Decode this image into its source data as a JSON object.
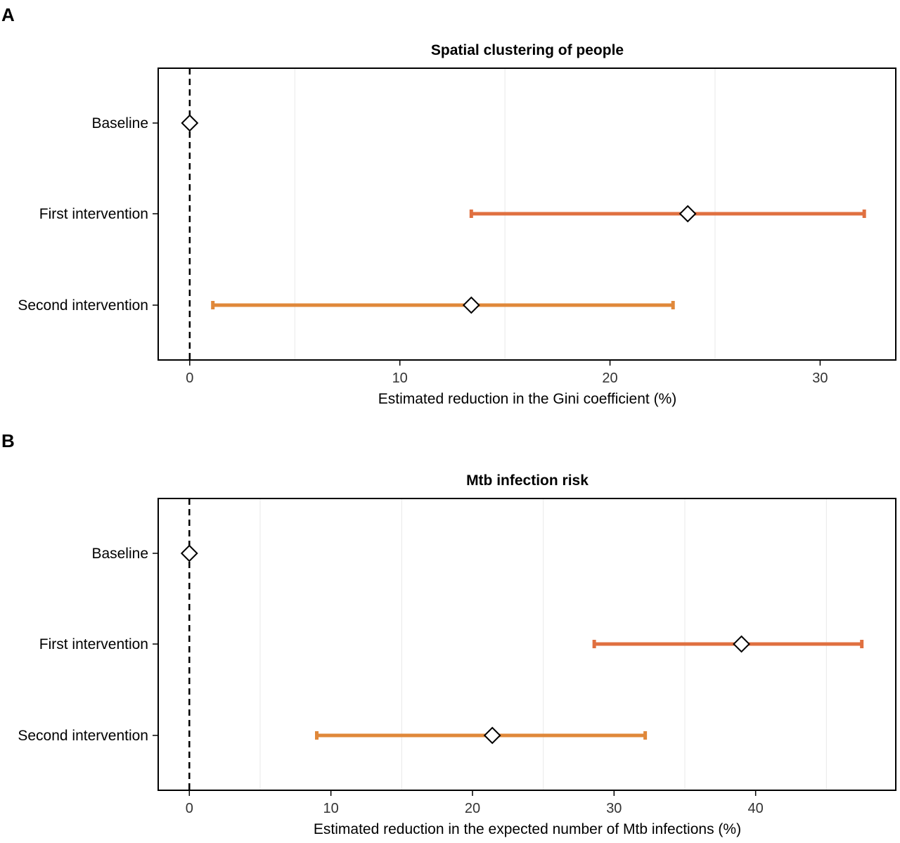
{
  "chart_data": [
    {
      "type": "errorbar",
      "panel": "A",
      "title": "Spatial clustering of people",
      "xlabel": "Estimated reduction in the Gini coefficient (%)",
      "ylabel": "",
      "xlim": [
        -1.5,
        33.6
      ],
      "xticks": [
        0,
        10,
        20,
        30
      ],
      "minor_gridlines": [
        5,
        15,
        25
      ],
      "reference_line": 0,
      "categories": [
        "Baseline",
        "First intervention",
        "Second intervention"
      ],
      "points": [
        {
          "category": "Baseline",
          "estimate": 0,
          "lower": null,
          "upper": null,
          "color": "#000000"
        },
        {
          "category": "First intervention",
          "estimate": 23.7,
          "lower": 13.4,
          "upper": 32.1,
          "color": "#E07040"
        },
        {
          "category": "Second intervention",
          "estimate": 13.4,
          "lower": 1.1,
          "upper": 23.0,
          "color": "#E0883A"
        }
      ]
    },
    {
      "type": "errorbar",
      "panel": "B",
      "title": "Mtb infection risk",
      "xlabel": "Estimated reduction in the expected number of Mtb infections (%)",
      "ylabel": "",
      "xlim": [
        -2.2,
        49.9
      ],
      "xticks": [
        0,
        10,
        20,
        30,
        40
      ],
      "minor_gridlines": [
        5,
        15,
        25,
        35,
        45
      ],
      "reference_line": 0,
      "categories": [
        "Baseline",
        "First intervention",
        "Second intervention"
      ],
      "points": [
        {
          "category": "Baseline",
          "estimate": 0,
          "lower": null,
          "upper": null,
          "color": "#000000"
        },
        {
          "category": "First intervention",
          "estimate": 39.0,
          "lower": 28.6,
          "upper": 47.5,
          "color": "#E07040"
        },
        {
          "category": "Second intervention",
          "estimate": 21.4,
          "lower": 9.0,
          "upper": 32.2,
          "color": "#E0883A"
        }
      ]
    }
  ]
}
